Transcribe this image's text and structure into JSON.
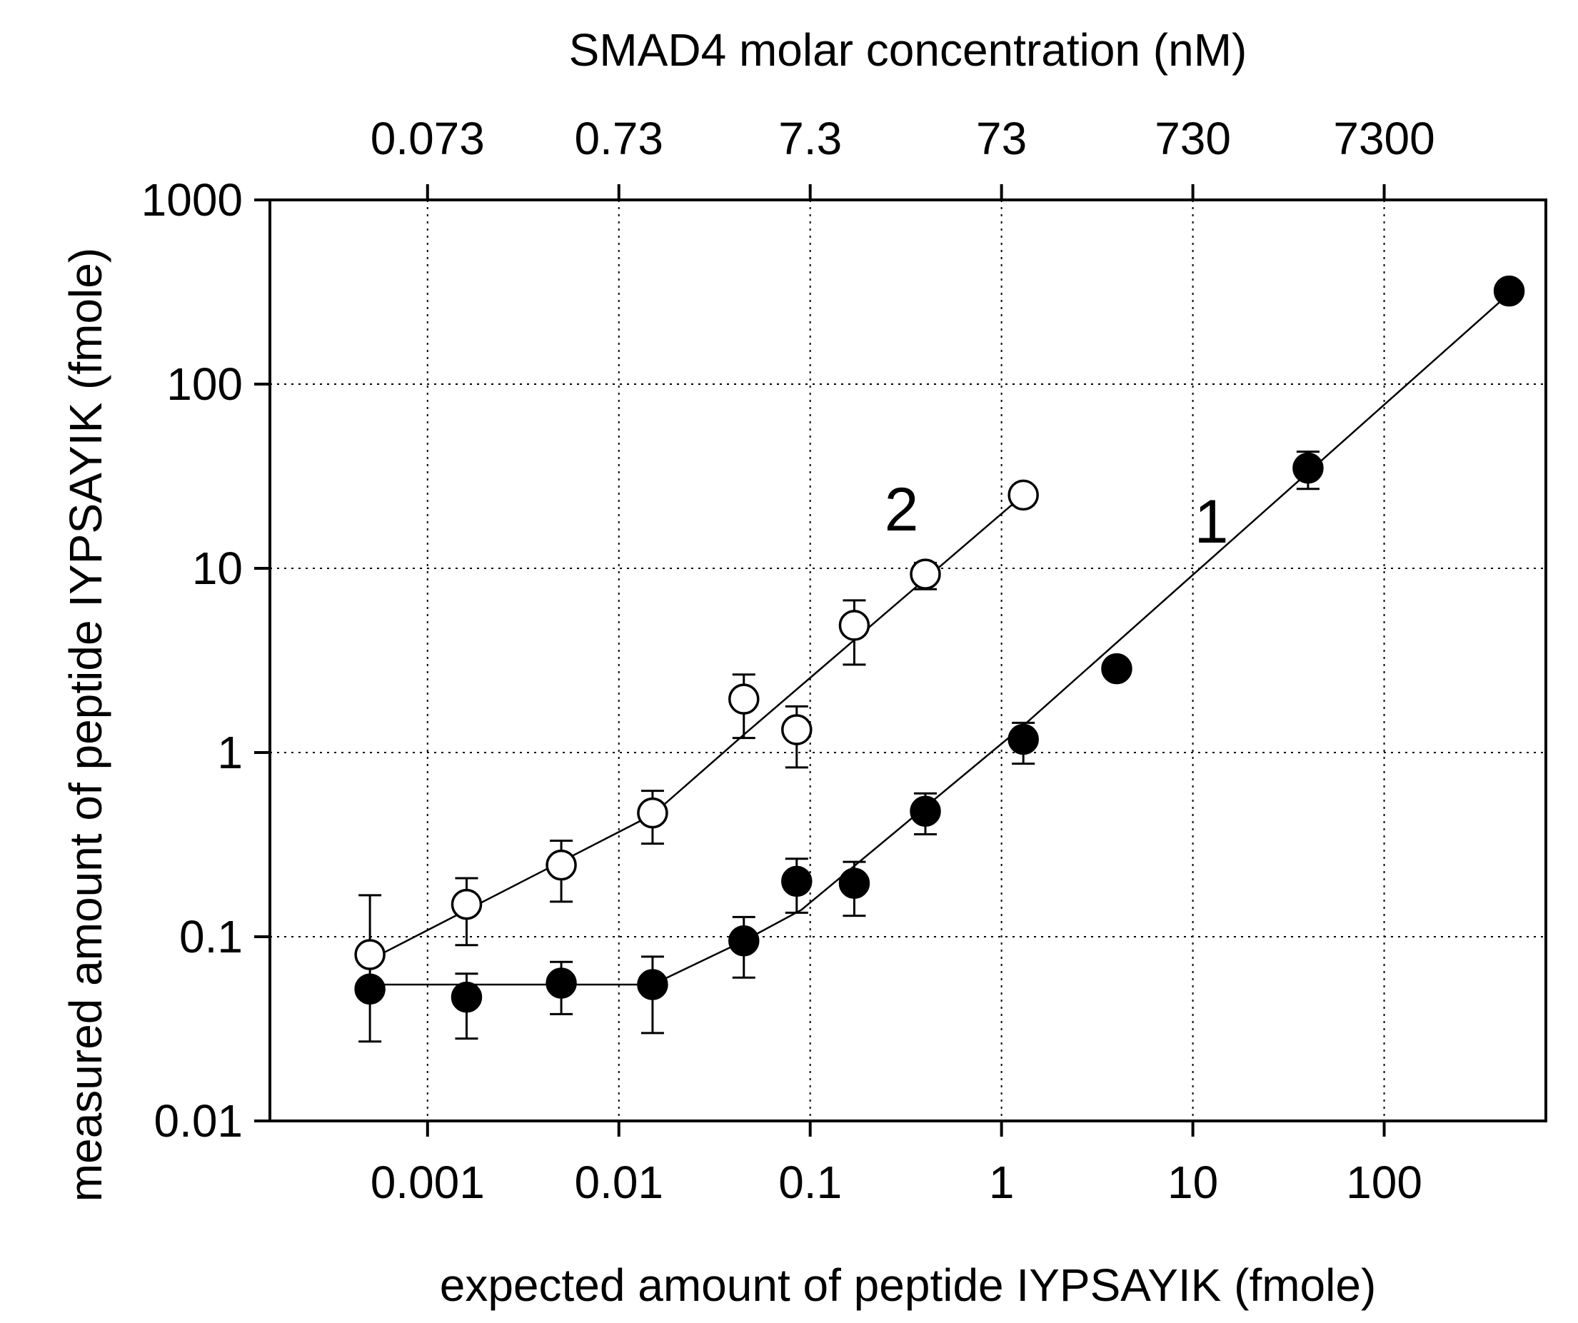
{
  "chart_data": {
    "type": "scatter",
    "scale": "log-log",
    "grid": true,
    "xlabel": "expected amount of peptide IYPSAYIK (fmole)",
    "ylabel": "measured amount of peptide IYPSAYIK (fmole)",
    "x2label": "SMAD4 molar concentration (nM)",
    "xlim": [
      0.00015,
      700
    ],
    "ylim": [
      0.01,
      1000
    ],
    "x_ticks": [
      0.001,
      0.01,
      0.1,
      1,
      10,
      100
    ],
    "x_tick_labels": [
      "0.001",
      "0.01",
      "0.1",
      "1",
      "10",
      "100"
    ],
    "y_ticks": [
      0.01,
      0.1,
      1,
      10,
      100,
      1000
    ],
    "y_tick_labels": [
      "0.01",
      "0.1",
      "1",
      "10",
      "100",
      "1000"
    ],
    "x2_ticks": [
      0.001,
      0.01,
      0.1,
      1,
      10,
      100
    ],
    "x2_tick_labels": [
      "0.073",
      "0.73",
      "7.3",
      "73",
      "730",
      "7300"
    ],
    "series": [
      {
        "name": "1",
        "marker": "filled-circle",
        "label_at": [
          12.5,
          18
        ],
        "x": [
          0.0005,
          0.0016,
          0.005,
          0.015,
          0.045,
          0.085,
          0.17,
          0.4,
          1.3,
          4,
          40,
          450
        ],
        "y": [
          0.052,
          0.047,
          0.056,
          0.055,
          0.095,
          0.2,
          0.195,
          0.48,
          1.18,
          2.85,
          35,
          320
        ],
        "err_low": [
          0.027,
          0.028,
          0.038,
          0.03,
          0.06,
          0.135,
          0.13,
          0.36,
          0.87,
          2.6,
          27,
          300
        ],
        "err_high": [
          0.052,
          0.063,
          0.073,
          0.078,
          0.128,
          0.265,
          0.255,
          0.6,
          1.45,
          3.1,
          43,
          340
        ],
        "fit": [
          [
            0.0005,
            0.055
          ],
          [
            0.015,
            0.055
          ],
          [
            0.045,
            0.095
          ],
          [
            0.09,
            0.14
          ],
          [
            1.3,
            1.4
          ],
          [
            450,
            310
          ]
        ]
      },
      {
        "name": "2",
        "marker": "open-circle",
        "label_at": [
          0.3,
          21
        ],
        "x": [
          0.0005,
          0.0016,
          0.005,
          0.015,
          0.045,
          0.085,
          0.17,
          0.4,
          1.3
        ],
        "y": [
          0.08,
          0.15,
          0.245,
          0.47,
          1.95,
          1.33,
          4.9,
          9.3,
          25
        ],
        "err_low": [
          0.05,
          0.09,
          0.155,
          0.32,
          1.2,
          0.83,
          3,
          7.7,
          22
        ],
        "err_high": [
          0.168,
          0.208,
          0.332,
          0.62,
          2.65,
          1.78,
          6.7,
          10.7,
          27
        ],
        "fit": [
          [
            0.0005,
            0.075
          ],
          [
            0.015,
            0.46
          ],
          [
            0.045,
            1.25
          ],
          [
            1.3,
            25
          ]
        ]
      }
    ]
  }
}
